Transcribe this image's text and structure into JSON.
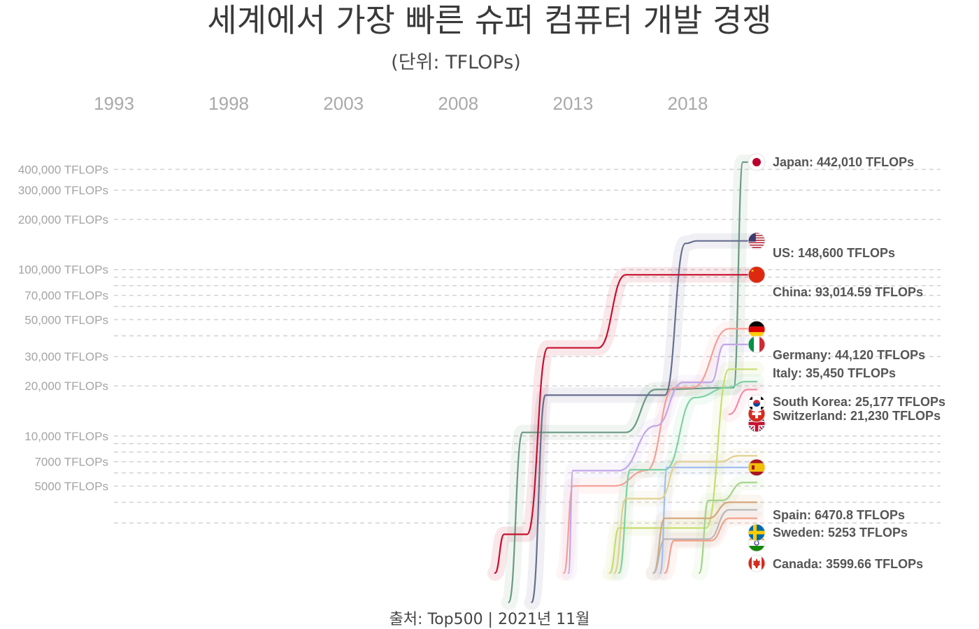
{
  "chart_data": {
    "type": "line",
    "title": "세계에서 가장 빠른 슈퍼 컴퓨터 개발 경쟁",
    "subtitle": "(단위: TFLOPs)",
    "source": "출처: Top500  |  2021년 11월",
    "xaxis_years": [
      "1993",
      "1998",
      "2003",
      "2008",
      "2013",
      "2018"
    ],
    "xlim": [
      1993,
      2021
    ],
    "yscale": "log",
    "ylim": [
      1500,
      500000
    ],
    "yticks": [
      {
        "value": 400000,
        "label": "400,000 TFLOPs"
      },
      {
        "value": 300000,
        "label": "300,000 TFLOPs"
      },
      {
        "value": 200000,
        "label": "200,000 TFLOPs"
      },
      {
        "value": 100000,
        "label": "100,000 TFLOPs"
      },
      {
        "value": 70000,
        "label": "70,000 TFLOPs"
      },
      {
        "value": 50000,
        "label": "50,000 TFLOPs"
      },
      {
        "value": 30000,
        "label": "30,000 TFLOPs"
      },
      {
        "value": 20000,
        "label": "20,000 TFLOPs"
      },
      {
        "value": 10000,
        "label": "10,000 TFLOPs"
      },
      {
        "value": 7000,
        "label": "7000 TFLOPs"
      },
      {
        "value": 5000,
        "label": "5000 TFLOPs"
      }
    ],
    "extra_gridlines": [
      90000,
      80000,
      60000,
      40000,
      9000,
      8000,
      6000,
      4000,
      3000
    ],
    "series": [
      {
        "name": "Japan",
        "label": "Japan: 442,010 TFLOPs",
        "color": "#6b9a84",
        "flag": "japan-flag-icon",
        "points": [
          [
            2010.2,
            1000
          ],
          [
            2010.8,
            10510
          ],
          [
            2015.3,
            10510
          ],
          [
            2016.6,
            19000
          ],
          [
            2020.0,
            19500
          ],
          [
            2020.4,
            442010
          ],
          [
            2021,
            442010
          ]
        ]
      },
      {
        "name": "US",
        "label": "US: 148,600 TFLOPs",
        "color": "#676e8f",
        "flag": "us-flag-icon",
        "points": [
          [
            2011.2,
            1000
          ],
          [
            2011.8,
            17590
          ],
          [
            2017.0,
            17590
          ],
          [
            2017.9,
            143500
          ],
          [
            2018.4,
            148600
          ],
          [
            2021,
            148600
          ]
        ]
      },
      {
        "name": "China",
        "label": "China: 93,014.59 TFLOPs",
        "color": "#c8102e",
        "flag": "china-flag-icon",
        "points": [
          [
            2009.6,
            1500
          ],
          [
            2010.0,
            2566
          ],
          [
            2011.0,
            2566
          ],
          [
            2011.9,
            33860
          ],
          [
            2014.1,
            33860
          ],
          [
            2015.3,
            93014.59
          ],
          [
            2021,
            93014.59
          ]
        ]
      },
      {
        "name": "Germany",
        "label": "Germany: 44,120 TFLOPs",
        "color": "#f59d95",
        "flag": "germany-flag-icon",
        "points": [
          [
            2012.6,
            1500
          ],
          [
            2013.0,
            5008
          ],
          [
            2014.8,
            5008
          ],
          [
            2016.2,
            6200
          ],
          [
            2017.4,
            19500
          ],
          [
            2018.2,
            19500
          ],
          [
            2019.8,
            44120
          ],
          [
            2021,
            44120
          ]
        ]
      },
      {
        "name": "Italy",
        "label": "Italy: 35,450 TFLOPs",
        "color": "#c3a6e8",
        "flag": "italy-flag-icon",
        "points": [
          [
            2012.8,
            1500
          ],
          [
            2013.0,
            6190
          ],
          [
            2015.0,
            6190
          ],
          [
            2016.6,
            11500
          ],
          [
            2017.8,
            21000
          ],
          [
            2019.0,
            21000
          ],
          [
            2019.6,
            35450
          ],
          [
            2021,
            35450
          ]
        ]
      },
      {
        "name": "South Korea",
        "label": "South Korea: 25,177 TFLOPs",
        "color": "#c7dc6e",
        "flag": "south-korea-flag-icon",
        "points": [
          [
            2014.6,
            1500
          ],
          [
            2015.0,
            2800
          ],
          [
            2018.8,
            2800
          ],
          [
            2019.8,
            25177
          ],
          [
            2021,
            25177
          ]
        ]
      },
      {
        "name": "Switzerland",
        "label": "Switzerland: 21,230 TFLOPs",
        "color": "#7ed2a0",
        "flag": "switzerland-flag-icon",
        "points": [
          [
            2015.0,
            1500
          ],
          [
            2015.5,
            6271
          ],
          [
            2017.0,
            6271
          ],
          [
            2018.3,
            17000
          ],
          [
            2019.8,
            19600
          ],
          [
            2020.5,
            21230
          ],
          [
            2021,
            21230
          ]
        ]
      },
      {
        "name": "UK",
        "label": "",
        "color": "#f58aa2",
        "flag": "uk-flag-icon",
        "points": [
          [
            2019.8,
            13500
          ],
          [
            2020.6,
            19000
          ],
          [
            2021,
            19000
          ]
        ]
      },
      {
        "name": "Spain",
        "label": "Spain: 6470.8 TFLOPs",
        "color": "#9ebdec",
        "flag": "spain-flag-icon",
        "points": [
          [
            2016.8,
            1500
          ],
          [
            2017.1,
            6470.8
          ],
          [
            2021,
            6470.8
          ]
        ]
      },
      {
        "name": "Sweden",
        "label": "Sweden: 5253 TFLOPs",
        "color": "#a4d48a",
        "flag": "sweden-flag-icon",
        "points": [
          [
            2018.5,
            1500
          ],
          [
            2018.9,
            4100
          ],
          [
            2019.5,
            4100
          ],
          [
            2020.4,
            5253
          ],
          [
            2021,
            5253
          ]
        ]
      },
      {
        "name": "India",
        "label": "",
        "color": "#d4a87a",
        "flag": "india-flag-icon",
        "points": [
          [
            2016.5,
            1500
          ],
          [
            2017.0,
            3200
          ],
          [
            2018.9,
            3200
          ],
          [
            2019.8,
            4000
          ],
          [
            2021,
            4000
          ]
        ]
      },
      {
        "name": "Canada",
        "label": "Canada: 3599.66 TFLOPs",
        "color": "#b8b8b8",
        "flag": "canada-flag-icon",
        "points": [
          [
            2016.5,
            1500
          ],
          [
            2017.0,
            2400
          ],
          [
            2018.9,
            2400
          ],
          [
            2019.8,
            3599.66
          ],
          [
            2021,
            3599.66
          ]
        ]
      },
      {
        "name": "Other",
        "label": "",
        "color": "#f5a088",
        "flag": "",
        "points": [
          [
            2017.0,
            1500
          ],
          [
            2017.4,
            2350
          ],
          [
            2019.0,
            2350
          ],
          [
            2019.8,
            3200
          ],
          [
            2021,
            3200
          ]
        ]
      },
      {
        "name": "Other2",
        "label": "",
        "color": "#e0d090",
        "flag": "",
        "points": [
          [
            2014.8,
            1500
          ],
          [
            2015.3,
            4200
          ],
          [
            2016.8,
            4200
          ],
          [
            2017.6,
            7000
          ],
          [
            2019.4,
            7000
          ],
          [
            2020.2,
            7600
          ],
          [
            2021,
            7600
          ]
        ]
      }
    ]
  }
}
